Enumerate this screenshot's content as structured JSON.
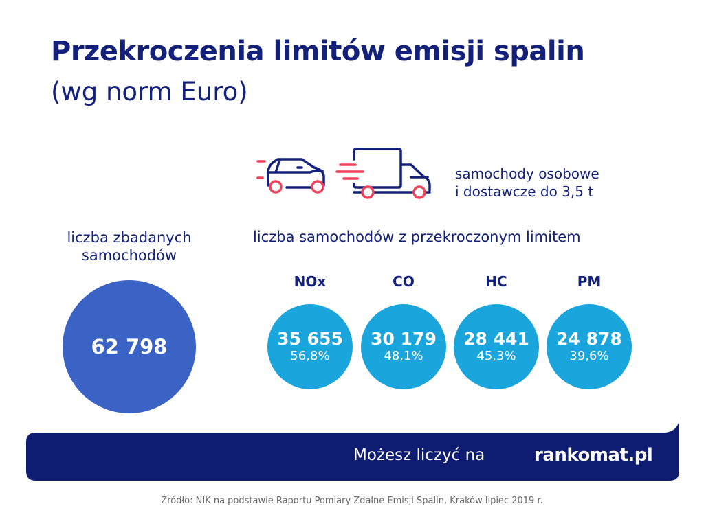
{
  "header": {
    "title": "Przekroczenia limitów emisji spalin",
    "subtitle": "(wg norm Euro)"
  },
  "vehicles": {
    "label_line1": "samochody osobowe",
    "label_line2": "i dostawcze do 3,5 t",
    "icons": [
      "car-icon",
      "van-icon"
    ]
  },
  "examined": {
    "label": "liczba zbadanych samochodów",
    "value": "62 798"
  },
  "exceeded": {
    "label": "liczba samochodów z przekroczonym limitem",
    "items": [
      {
        "pollutant": "NOx",
        "count": "35 655",
        "percent": "56,8%"
      },
      {
        "pollutant": "CO",
        "count": "30 179",
        "percent": "48,1%"
      },
      {
        "pollutant": "HC",
        "count": "28 441",
        "percent": "45,3%"
      },
      {
        "pollutant": "PM",
        "count": "24 878",
        "percent": "39,6%"
      }
    ]
  },
  "footer": {
    "slogan": "Możesz liczyć na",
    "logo": "rankomat.pl",
    "source": "Źródło: NIK na podstawie Raportu Pomiary Zdalne Emisji Spalin, Kraków lipiec 2019 r."
  },
  "colors": {
    "navy": "#14217a",
    "big_circle": "#3b62c5",
    "small_circle": "#1aa5dd",
    "accent_red": "#f0425a"
  }
}
